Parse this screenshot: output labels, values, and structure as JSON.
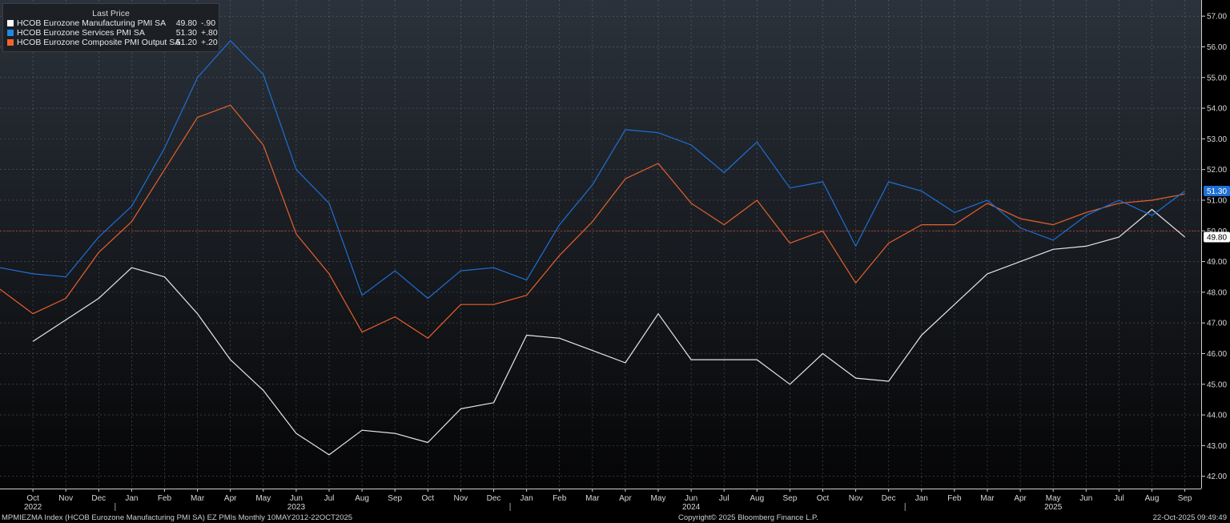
{
  "legend": {
    "title": "Last Price",
    "items": [
      {
        "name": "HCOB Eurozone Manufacturing PMI SA",
        "value": "49.80",
        "change": "-.90",
        "color": "#ffffff"
      },
      {
        "name": "HCOB Eurozone Services PMI SA",
        "value": "51.30",
        "change": "+.80",
        "color": "#1e88e5"
      },
      {
        "name": "HCOB Eurozone Composite PMI Output SA",
        "value": "51.20",
        "change": "+.20",
        "color": "#f0642d"
      }
    ]
  },
  "footer": {
    "left": "MPMIEZMA Index (HCOB Eurozone Manufacturing PMI SA) EZ PMIs Monthly 10MAY2012-22OCT2025",
    "center": "Copyright© 2025 Bloomberg Finance L.P.",
    "right": "22-Oct-2025 09:49:49"
  },
  "chart_data": {
    "type": "line",
    "x": [
      "Sep 2022",
      "Oct 2022",
      "Nov 2022",
      "Dec 2022",
      "Jan 2023",
      "Feb 2023",
      "Mar 2023",
      "Apr 2023",
      "May 2023",
      "Jun 2023",
      "Jul 2023",
      "Aug 2023",
      "Sep 2023",
      "Oct 2023",
      "Nov 2023",
      "Dec 2023",
      "Jan 2024",
      "Feb 2024",
      "Mar 2024",
      "Apr 2024",
      "May 2024",
      "Jun 2024",
      "Jul 2024",
      "Aug 2024",
      "Sep 2024",
      "Oct 2024",
      "Nov 2024",
      "Dec 2024",
      "Jan 2025",
      "Feb 2025",
      "Mar 2025",
      "Apr 2025",
      "May 2025",
      "Jun 2025",
      "Jul 2025",
      "Aug 2025",
      "Sep 2025"
    ],
    "month_labels": [
      "Oct",
      "Nov",
      "Dec",
      "Jan",
      "Feb",
      "Mar",
      "Apr",
      "May",
      "Jun",
      "Jul",
      "Aug",
      "Sep",
      "Oct",
      "Nov",
      "Dec",
      "Jan",
      "Feb",
      "Mar",
      "Apr",
      "May",
      "Jun",
      "Jul",
      "Aug",
      "Sep",
      "Oct",
      "Nov",
      "Dec",
      "Jan",
      "Feb",
      "Mar",
      "Apr",
      "May",
      "Jun",
      "Jul",
      "Aug",
      "Sep"
    ],
    "year_labels": [
      {
        "label": "2022",
        "month": "Oct 2022"
      },
      {
        "label": "2023",
        "month": "Jun 2023"
      },
      {
        "label": "2024",
        "month": "Jun 2024"
      },
      {
        "label": "2025",
        "month": "May 2025"
      }
    ],
    "year_dividers": [
      "Dec 2022",
      "Dec 2023",
      "Dec 2024"
    ],
    "series": [
      {
        "name": "HCOB Eurozone Manufacturing PMI SA",
        "color": "#e6e6e6",
        "values": [
          null,
          46.4,
          47.1,
          47.8,
          48.8,
          48.5,
          47.3,
          45.8,
          44.8,
          43.4,
          42.7,
          43.5,
          43.4,
          43.1,
          44.2,
          44.4,
          46.6,
          46.5,
          46.1,
          45.7,
          47.3,
          45.8,
          45.8,
          45.8,
          45.0,
          46.0,
          45.2,
          45.1,
          46.6,
          47.6,
          48.6,
          49.0,
          49.4,
          49.5,
          49.8,
          50.7,
          49.8
        ]
      },
      {
        "name": "HCOB Eurozone Services PMI SA",
        "color": "#1e6fd6",
        "values": [
          48.8,
          48.6,
          48.5,
          49.8,
          50.8,
          52.7,
          55.0,
          56.2,
          55.1,
          52.0,
          50.9,
          47.9,
          48.7,
          47.8,
          48.7,
          48.8,
          48.4,
          50.2,
          51.5,
          53.3,
          53.2,
          52.8,
          51.9,
          52.9,
          51.4,
          51.6,
          49.5,
          51.6,
          51.3,
          50.6,
          51.0,
          50.1,
          49.7,
          50.5,
          51.0,
          50.5,
          51.3
        ]
      },
      {
        "name": "HCOB Eurozone Composite PMI Output SA",
        "color": "#e8602c",
        "values": [
          48.1,
          47.3,
          47.8,
          49.3,
          50.3,
          52.0,
          53.7,
          54.1,
          52.8,
          49.9,
          48.6,
          46.7,
          47.2,
          46.5,
          47.6,
          47.6,
          47.9,
          49.2,
          50.3,
          51.7,
          52.2,
          50.9,
          50.2,
          51.0,
          49.6,
          50.0,
          48.3,
          49.6,
          50.2,
          50.2,
          50.9,
          50.4,
          50.2,
          50.6,
          50.9,
          51.0,
          51.2
        ]
      }
    ],
    "reference_line": 50.0,
    "y_ticks": [
      "42.00",
      "43.00",
      "44.00",
      "45.00",
      "46.00",
      "47.00",
      "48.00",
      "49.00",
      "50.00",
      "51.00",
      "52.00",
      "53.00",
      "54.00",
      "55.00",
      "56.00",
      "57.00"
    ],
    "ylim": [
      41.6,
      57.4
    ],
    "last_value_tags": [
      {
        "label": "51.30",
        "value": 51.3,
        "bg": "#1e6fd6",
        "fg": "#ffffff"
      },
      {
        "label": "49.80",
        "value": 49.8,
        "bg": "#ffffff",
        "fg": "#000000"
      }
    ],
    "grid": true,
    "legend_position": "top-left",
    "ylabel": "",
    "xlabel": "",
    "title": ""
  }
}
